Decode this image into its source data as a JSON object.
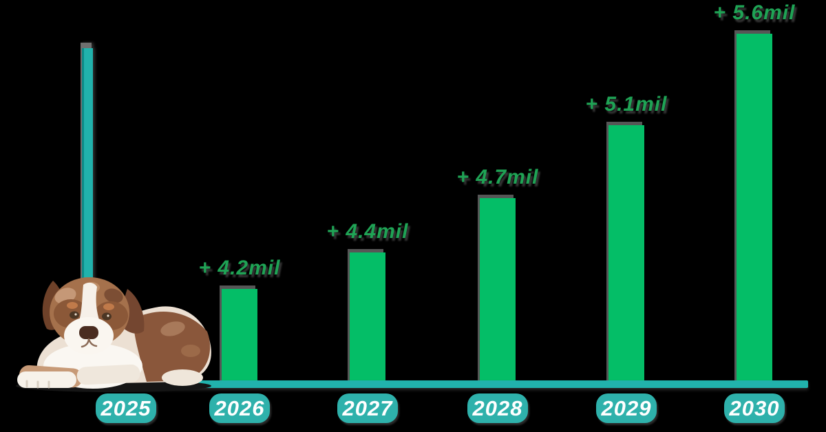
{
  "chart_data": {
    "type": "bar",
    "title": "",
    "categories": [
      "2025",
      "2026",
      "2027",
      "2028",
      "2029",
      "2030"
    ],
    "values": [
      null,
      4.2,
      4.4,
      4.7,
      5.1,
      5.6
    ],
    "bar_labels": [
      "",
      "+ 4.2mil",
      "+ 4.4mil",
      "+ 4.7mil",
      "+ 5.1mil",
      "+ 5.6mil"
    ],
    "unit": "mil",
    "xlabel": "",
    "ylabel": "",
    "grid": false,
    "legend": null,
    "baseline_marker_year": "2025",
    "colors": {
      "background": "#000000",
      "bar": "#04be67",
      "label_text": "#1fa355",
      "axis": "#21b2ac",
      "year_pill": "#2eb1ab",
      "year_text": "#ffffff",
      "baseline_marker": "#21b2ac"
    }
  },
  "illustration": {
    "name": "puppy-photo",
    "description": "Australian Shepherd puppy lying down at lower left"
  }
}
